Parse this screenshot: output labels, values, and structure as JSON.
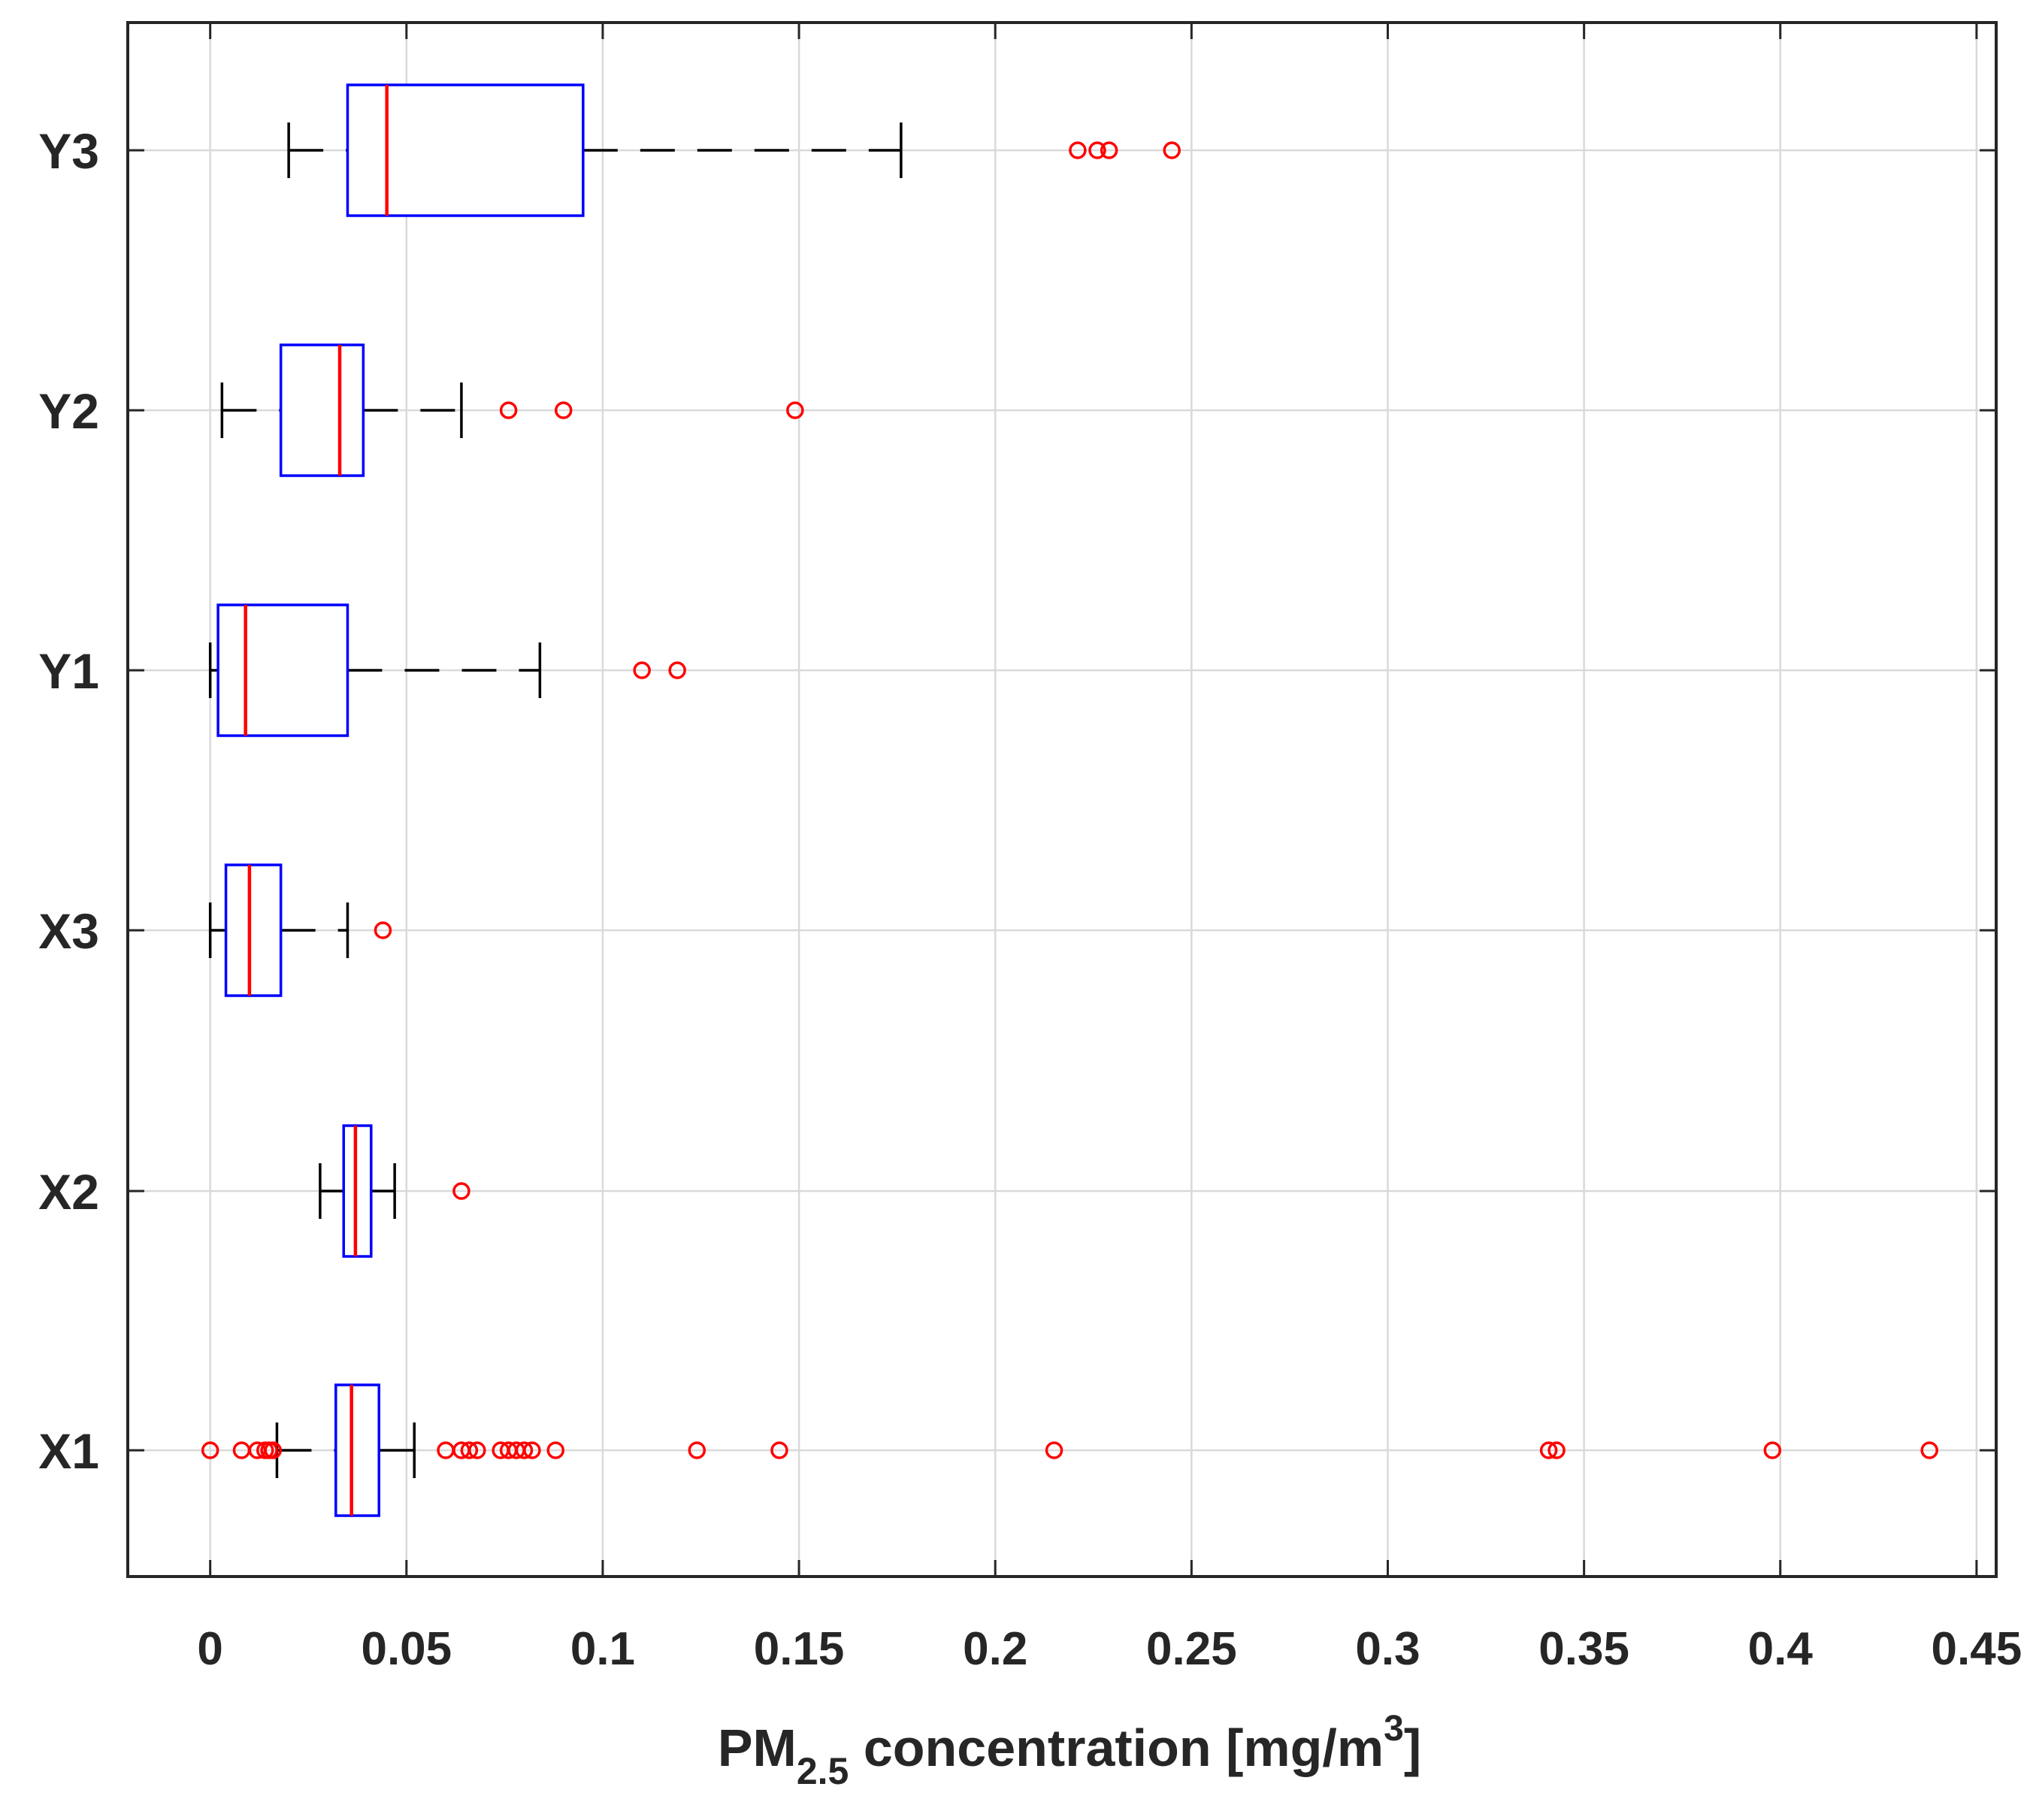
{
  "chart_data": {
    "type": "boxplot",
    "orientation": "horizontal",
    "title": "",
    "xlabel": {
      "prefix": "PM",
      "subscript": "2.5",
      "middle": " concentration [mg/m",
      "superscript": "3",
      "suffix": "]"
    },
    "ylabel": "",
    "xlim": [
      -0.021,
      0.455
    ],
    "xticks": [
      0,
      0.05,
      0.1,
      0.15,
      0.2,
      0.25,
      0.3,
      0.35,
      0.4,
      0.45
    ],
    "xtick_labels": [
      "0",
      "0.05",
      "0.1",
      "0.15",
      "0.2",
      "0.25",
      "0.3",
      "0.35",
      "0.4",
      "0.45"
    ],
    "grid": true,
    "colors": {
      "box": "#0000ff",
      "median": "#ff0000",
      "whisker": "#000000",
      "outlier": "#ff0000",
      "grid": "#d9d9d9",
      "axis": "#262626"
    },
    "categories": [
      "X1",
      "X2",
      "X3",
      "Y1",
      "Y2",
      "Y3"
    ],
    "boxes": [
      {
        "label": "X1",
        "whisker_low": 0.017,
        "q1": 0.032,
        "median": 0.036,
        "q3": 0.043,
        "whisker_high": 0.052,
        "outliers": [
          0.0,
          0.008,
          0.012,
          0.014,
          0.015,
          0.016,
          0.06,
          0.064,
          0.066,
          0.068,
          0.074,
          0.076,
          0.078,
          0.08,
          0.082,
          0.088,
          0.124,
          0.145,
          0.215,
          0.341,
          0.343,
          0.398,
          0.438
        ]
      },
      {
        "label": "X2",
        "whisker_low": 0.028,
        "q1": 0.034,
        "median": 0.037,
        "q3": 0.041,
        "whisker_high": 0.047,
        "outliers": [
          0.064
        ]
      },
      {
        "label": "X3",
        "whisker_low": 0.0,
        "q1": 0.004,
        "median": 0.01,
        "q3": 0.018,
        "whisker_high": 0.035,
        "outliers": [
          0.044
        ]
      },
      {
        "label": "Y1",
        "whisker_low": 0.0,
        "q1": 0.002,
        "median": 0.009,
        "q3": 0.035,
        "whisker_high": 0.084,
        "outliers": [
          0.11,
          0.119
        ]
      },
      {
        "label": "Y2",
        "whisker_low": 0.003,
        "q1": 0.018,
        "median": 0.033,
        "q3": 0.039,
        "whisker_high": 0.064,
        "outliers": [
          0.076,
          0.09,
          0.149
        ]
      },
      {
        "label": "Y3",
        "whisker_low": 0.02,
        "q1": 0.035,
        "median": 0.045,
        "q3": 0.095,
        "whisker_high": 0.176,
        "outliers": [
          0.221,
          0.226,
          0.229,
          0.245
        ]
      }
    ]
  }
}
